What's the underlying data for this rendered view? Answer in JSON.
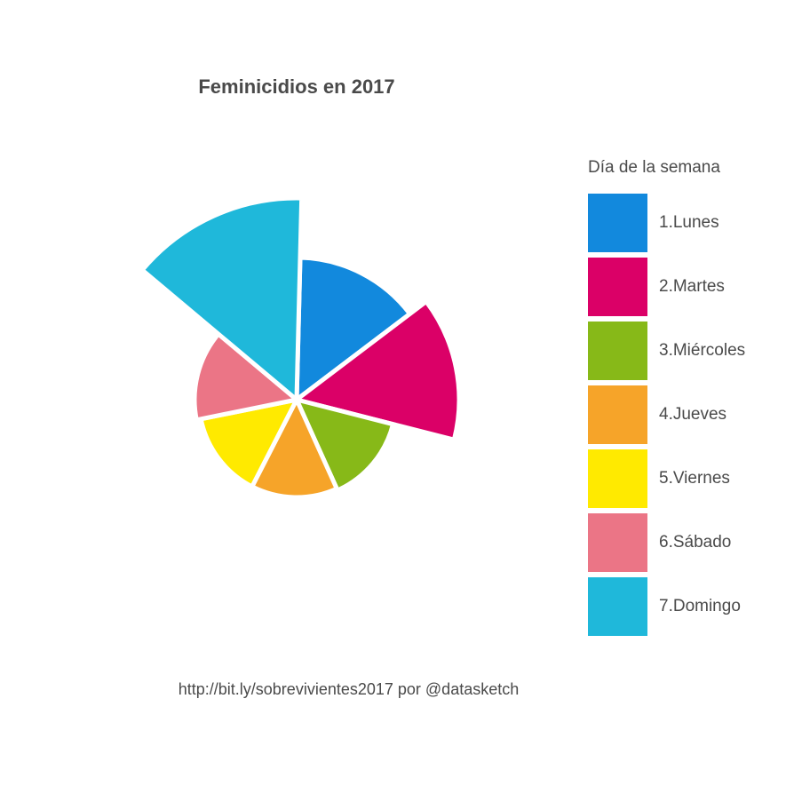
{
  "chart_data": {
    "type": "pie",
    "title": "Feminicidios en 2017",
    "legend_title": "Día de la semana",
    "legend_position": "right",
    "categories": [
      "1.Lunes",
      "2.Martes",
      "3.Miércoles",
      "4.Jueves",
      "5.Viernes",
      "6.Sábado",
      "7.Domingo"
    ],
    "values": [
      1,
      1,
      1,
      1,
      1,
      1,
      1
    ],
    "radius_values": [
      160,
      183,
      112,
      110,
      110,
      115,
      227
    ],
    "colors": [
      "#1289dd",
      "#db0067",
      "#87b918",
      "#f6a429",
      "#ffea00",
      "#eb7586",
      "#1fb8da"
    ]
  },
  "caption": "http://bit.ly/sobrevivientes2017 por @datasketch"
}
